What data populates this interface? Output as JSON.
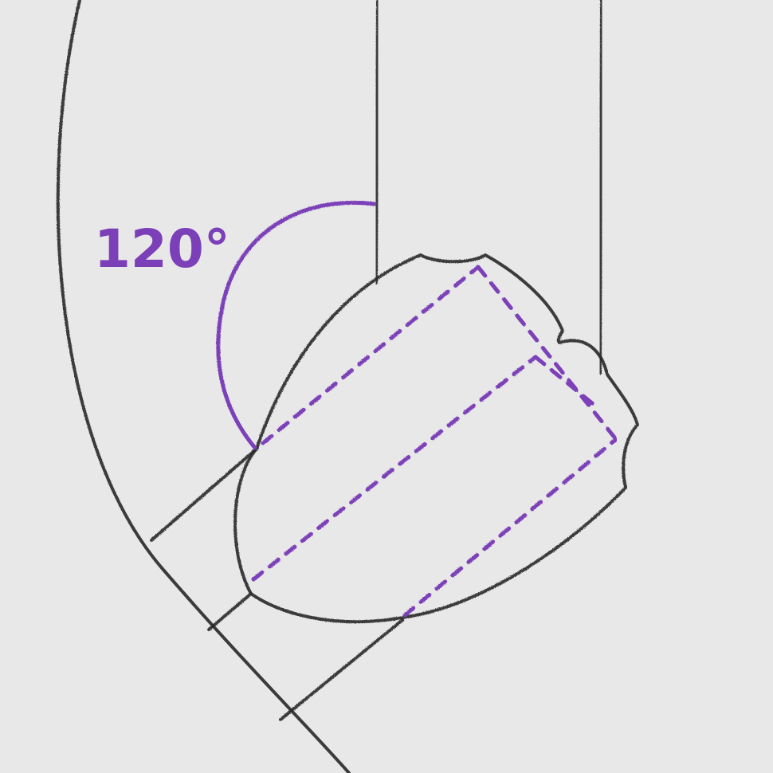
{
  "angle": {
    "label": "120°"
  },
  "colors": {
    "background": "#e8e8e8",
    "pencil": "#2a2a2a",
    "accent": "#7b3fb8"
  }
}
